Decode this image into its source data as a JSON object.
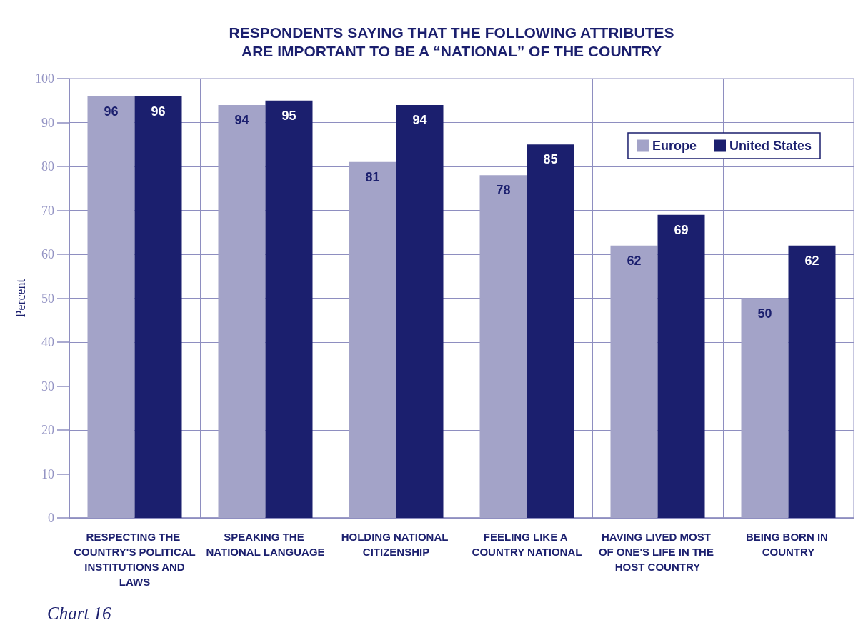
{
  "chart_data": {
    "type": "bar",
    "title": "RESPONDENTS SAYING THAT THE FOLLOWING ATTRIBUTES ARE IMPORTANT TO BE A “NATIONAL” OF THE COUNTRY",
    "ylabel": "Percent",
    "annotations": [
      "Chart 16"
    ],
    "categories": [
      "RESPECTING THE COUNTRY'S POLITICAL INSTITUTIONS AND LAWS",
      "SPEAKING THE NATIONAL LANGUAGE",
      "HOLDING NATIONAL CITIZENSHIP",
      "FEELING LIKE A COUNTRY NATIONAL",
      "HAVING LIVED MOST OF ONE'S LIFE IN THE HOST COUNTRY",
      "BEING BORN IN COUNTRY"
    ],
    "series": [
      {
        "name": "Europe",
        "color": "#a3a3c8",
        "values": [
          96,
          94,
          81,
          78,
          62,
          50
        ]
      },
      {
        "name": "United States",
        "color": "#1b1f6e",
        "values": [
          96,
          95,
          94,
          85,
          69,
          62
        ]
      }
    ],
    "ylim": [
      0,
      100
    ],
    "yticks": [
      0,
      10,
      20,
      30,
      40,
      50,
      60,
      70,
      80,
      90,
      100
    ],
    "grid": true,
    "legend": "top right",
    "data_labels": true
  }
}
